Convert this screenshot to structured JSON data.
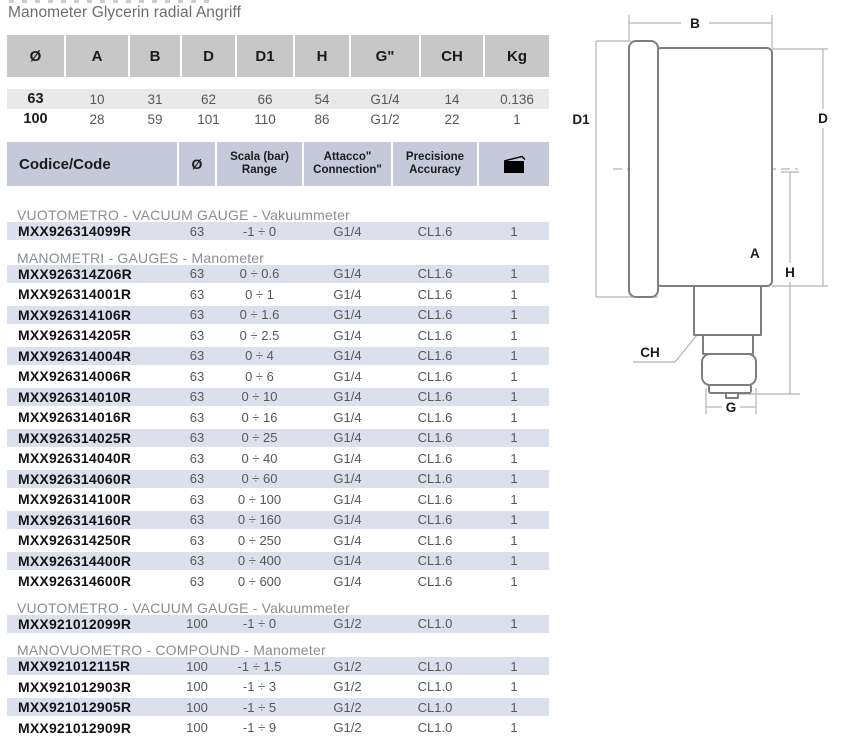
{
  "page": {
    "title": "Manometer Glycerin radial Angriff"
  },
  "colors": {
    "spec_header_bg": "#c7c7c8",
    "codes_header_bg": "#c6c9da",
    "row_stripe_blue": "#dce0ec",
    "row_stripe_gray": "#e9e9ea",
    "text_dark": "#1b1b1d",
    "text_gray": "#55575a",
    "section_text": "#8b8d90",
    "title_text": "#6d6e71",
    "outline_line": "#7d7e80",
    "dimension_line": "#b3b5b7"
  },
  "spec_table": {
    "headers": [
      "Ø",
      "A",
      "B",
      "D",
      "D1",
      "H",
      "G\"",
      "CH",
      "Kg"
    ],
    "rows": [
      [
        "63",
        "10",
        "31",
        "62",
        "66",
        "54",
        "G1/4",
        "14",
        "0.136"
      ],
      [
        "100",
        "28",
        "59",
        "101",
        "110",
        "86",
        "G1/2",
        "22",
        "1"
      ]
    ]
  },
  "codes_table": {
    "header": {
      "code": "Codice/Code",
      "diameter": "Ø",
      "scale_line1": "Scala (bar)",
      "scale_line2": "Range",
      "connection_line1": "Attacco\"",
      "connection_line2": "Connection\"",
      "accuracy_line1": "Precisione",
      "accuracy_line2": "Accuracy",
      "package_icon": "package-icon"
    },
    "sections": [
      {
        "label": "VUOTOMETRO - VACUUM GAUGE - Vakuummeter",
        "rows": [
          [
            "MXX926314099R",
            "63",
            "-1 ÷ 0",
            "G1/4",
            "CL1.6",
            "1"
          ]
        ]
      },
      {
        "label": "MANOMETRI - GAUGES - Manometer",
        "rows": [
          [
            "MXX926314Z06R",
            "63",
            "0 ÷ 0.6",
            "G1/4",
            "CL1.6",
            "1"
          ],
          [
            "MXX926314001R",
            "63",
            "0 ÷ 1",
            "G1/4",
            "CL1.6",
            "1"
          ],
          [
            "MXX926314106R",
            "63",
            "0 ÷ 1.6",
            "G1/4",
            "CL1.6",
            "1"
          ],
          [
            "MXX926314205R",
            "63",
            "0 ÷ 2.5",
            "G1/4",
            "CL1.6",
            "1"
          ],
          [
            "MXX926314004R",
            "63",
            "0 ÷ 4",
            "G1/4",
            "CL1.6",
            "1"
          ],
          [
            "MXX926314006R",
            "63",
            "0 ÷ 6",
            "G1/4",
            "CL1.6",
            "1"
          ],
          [
            "MXX926314010R",
            "63",
            "0 ÷ 10",
            "G1/4",
            "CL1.6",
            "1"
          ],
          [
            "MXX926314016R",
            "63",
            "0 ÷ 16",
            "G1/4",
            "CL1.6",
            "1"
          ],
          [
            "MXX926314025R",
            "63",
            "0 ÷ 25",
            "G1/4",
            "CL1.6",
            "1"
          ],
          [
            "MXX926314040R",
            "63",
            "0 ÷ 40",
            "G1/4",
            "CL1.6",
            "1"
          ],
          [
            "MXX926314060R",
            "63",
            "0 ÷ 60",
            "G1/4",
            "CL1.6",
            "1"
          ],
          [
            "MXX926314100R",
            "63",
            "0 ÷ 100",
            "G1/4",
            "CL1.6",
            "1"
          ],
          [
            "MXX926314160R",
            "63",
            "0 ÷ 160",
            "G1/4",
            "CL1.6",
            "1"
          ],
          [
            "MXX926314250R",
            "63",
            "0 ÷ 250",
            "G1/4",
            "CL1.6",
            "1"
          ],
          [
            "MXX926314400R",
            "63",
            "0 ÷ 400",
            "G1/4",
            "CL1.6",
            "1"
          ],
          [
            "MXX926314600R",
            "63",
            "0 ÷ 600",
            "G1/4",
            "CL1.6",
            "1"
          ]
        ]
      },
      {
        "label": "VUOTOMETRO - VACUUM GAUGE - Vakuummeter",
        "rows": [
          [
            "MXX921012099R",
            "100",
            "-1 ÷ 0",
            "G1/2",
            "CL1.0",
            "1"
          ]
        ]
      },
      {
        "label": "MANOVUOMETRO - COMPOUND - Manometer",
        "rows": [
          [
            "MXX921012115R",
            "100",
            "-1 ÷ 1.5",
            "G1/2",
            "CL1.0",
            "1"
          ],
          [
            "MXX921012903R",
            "100",
            "-1 ÷ 3",
            "G1/2",
            "CL1.0",
            "1"
          ],
          [
            "MXX921012905R",
            "100",
            "-1 ÷ 5",
            "G1/2",
            "CL1.0",
            "1"
          ],
          [
            "MXX921012909R",
            "100",
            "-1 ÷ 9",
            "G1/2",
            "CL1.0",
            "1"
          ]
        ]
      }
    ]
  },
  "diagram": {
    "labels": {
      "B": "B",
      "D1": "D1",
      "D": "D",
      "A": "A",
      "H": "H",
      "CH": "CH",
      "G": "G"
    }
  }
}
